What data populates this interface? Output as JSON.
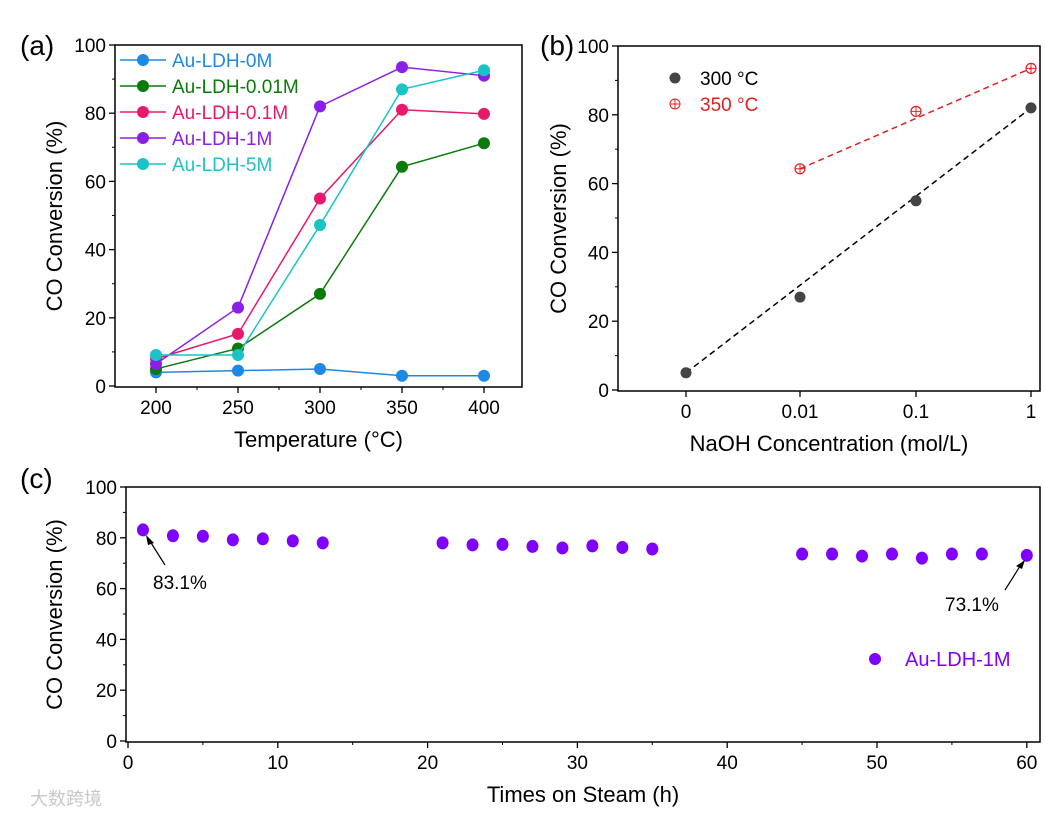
{
  "watermark": "大数跨境",
  "chart_data": [
    {
      "panel_label": "(a)",
      "type": "line",
      "xlabel": "Temperature (°C)",
      "ylabel": "CO Conversion (%)",
      "x": [
        200,
        250,
        300,
        350,
        400
      ],
      "xticks": [
        "200",
        "250",
        "300",
        "350",
        "400"
      ],
      "xlim": [
        175,
        425
      ],
      "ylim": [
        0,
        100
      ],
      "yticks": [
        "0",
        "20",
        "40",
        "60",
        "80",
        "100"
      ],
      "legend_position": "top-left",
      "series": [
        {
          "name": "Au-LDH-0M",
          "color": "#1e88e5",
          "values": [
            4.0,
            4.5,
            5.0,
            3.0,
            3.0
          ]
        },
        {
          "name": "Au-LDH-0.01M",
          "color": "#0a7a0a",
          "values": [
            5.0,
            11.0,
            27.0,
            64.3,
            71.2
          ]
        },
        {
          "name": "Au-LDH-0.1M",
          "color": "#e8196c",
          "values": [
            8.0,
            15.3,
            55.0,
            81.0,
            79.8
          ]
        },
        {
          "name": "Au-LDH-1M",
          "color": "#8b1ee8",
          "values": [
            6.5,
            23.0,
            82.0,
            93.5,
            91.0
          ]
        },
        {
          "name": "Au-LDH-5M",
          "color": "#19c3c8",
          "values": [
            9.1,
            9.1,
            47.2,
            87.0,
            92.6
          ]
        }
      ]
    },
    {
      "panel_label": "(b)",
      "type": "scatter",
      "xlabel": "NaOH Concentration (mol/L)",
      "ylabel": "CO Conversion (%)",
      "categories": [
        "0",
        "0.01",
        "0.1",
        "1"
      ],
      "ylim": [
        0,
        100
      ],
      "yticks": [
        "0",
        "20",
        "40",
        "60",
        "80",
        "100"
      ],
      "legend_position": "top-left",
      "series": [
        {
          "name": "300 °C",
          "color": "#444444",
          "marker": "filled-circle",
          "values": [
            5.0,
            27.0,
            55.0,
            82.0
          ]
        },
        {
          "name": "350 °C",
          "color": "#e02020",
          "marker": "crossed-circle",
          "values": [
            null,
            64.3,
            81.0,
            93.5
          ]
        }
      ]
    },
    {
      "panel_label": "(c)",
      "type": "scatter",
      "xlabel": "Times on Steam (h)",
      "ylabel": "CO Conversion (%)",
      "xlim": [
        0,
        61
      ],
      "xticks": [
        "0",
        "10",
        "20",
        "30",
        "40",
        "50",
        "60"
      ],
      "ylim": [
        0,
        100
      ],
      "yticks": [
        "0",
        "20",
        "40",
        "60",
        "80",
        "100"
      ],
      "legend_position": "right",
      "series": [
        {
          "name": "Au-LDH-1M",
          "color": "#8000ff",
          "x": [
            1,
            3,
            5,
            7,
            9,
            11,
            13,
            21,
            23,
            25,
            27,
            29,
            31,
            33,
            35,
            45,
            47,
            49,
            51,
            53,
            55,
            57,
            60
          ],
          "values": [
            83.1,
            80.8,
            80.6,
            79.2,
            79.6,
            78.8,
            78.0,
            78.0,
            77.2,
            77.4,
            76.6,
            76.0,
            76.8,
            76.2,
            75.6,
            73.6,
            73.6,
            72.8,
            73.6,
            72.0,
            73.6,
            73.6,
            73.1
          ]
        }
      ],
      "annotations": [
        {
          "text": "83.1%",
          "x": 1,
          "y": 83.1
        },
        {
          "text": "73.1%",
          "x": 60,
          "y": 73.1
        }
      ]
    }
  ]
}
